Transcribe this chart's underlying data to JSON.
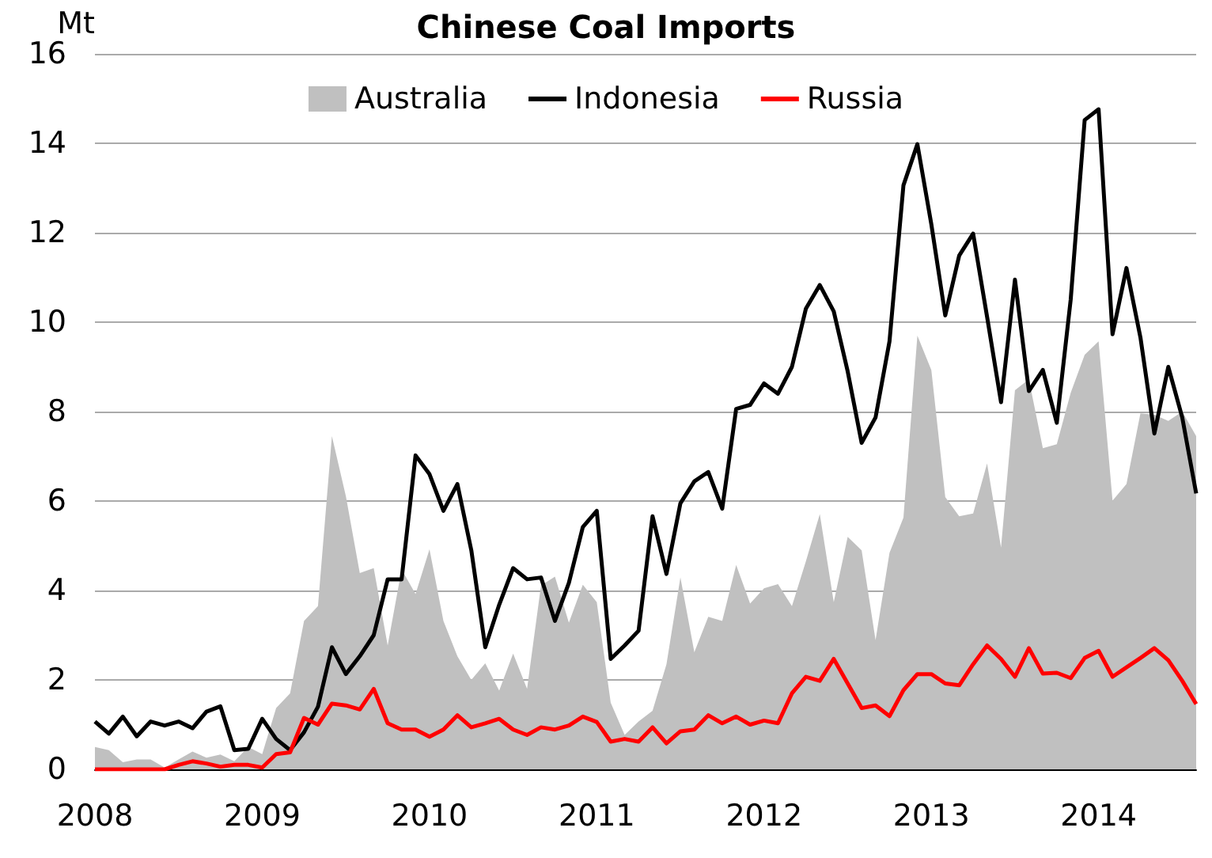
{
  "chart_data": {
    "type": "line",
    "title": "Chinese Coal Imports",
    "ylabel": "Mt",
    "x": [
      "2008-01",
      "2008-02",
      "2008-03",
      "2008-04",
      "2008-05",
      "2008-06",
      "2008-07",
      "2008-08",
      "2008-09",
      "2008-10",
      "2008-11",
      "2008-12",
      "2009-01",
      "2009-02",
      "2009-03",
      "2009-04",
      "2009-05",
      "2009-06",
      "2009-07",
      "2009-08",
      "2009-09",
      "2009-10",
      "2009-11",
      "2009-12",
      "2010-01",
      "2010-02",
      "2010-03",
      "2010-04",
      "2010-05",
      "2010-06",
      "2010-07",
      "2010-08",
      "2010-09",
      "2010-10",
      "2010-11",
      "2010-12",
      "2011-01",
      "2011-02",
      "2011-03",
      "2011-04",
      "2011-05",
      "2011-06",
      "2011-07",
      "2011-08",
      "2011-09",
      "2011-10",
      "2011-11",
      "2011-12",
      "2012-01",
      "2012-02",
      "2012-03",
      "2012-04",
      "2012-05",
      "2012-06",
      "2012-07",
      "2012-08",
      "2012-09",
      "2012-10",
      "2012-11",
      "2012-12",
      "2013-01",
      "2013-02",
      "2013-03",
      "2013-04",
      "2013-05",
      "2013-06",
      "2013-07",
      "2013-08",
      "2013-09",
      "2013-10",
      "2013-11",
      "2013-12",
      "2014-01",
      "2014-02",
      "2014-03",
      "2014-04",
      "2014-05",
      "2014-06",
      "2014-07",
      "2014-08"
    ],
    "series": [
      {
        "name": "Australia",
        "type": "area",
        "color": "#c0c0c0",
        "values": [
          0.5,
          0.43,
          0.16,
          0.22,
          0.22,
          0.04,
          0.22,
          0.4,
          0.26,
          0.33,
          0.18,
          0.5,
          0.34,
          1.37,
          1.7,
          3.32,
          3.65,
          7.45,
          6.11,
          4.39,
          4.5,
          2.77,
          4.47,
          3.92,
          4.92,
          3.32,
          2.53,
          2.0,
          2.37,
          1.76,
          2.59,
          1.8,
          4.11,
          4.31,
          3.28,
          4.13,
          3.74,
          1.49,
          0.77,
          1.07,
          1.31,
          2.35,
          4.29,
          2.62,
          3.41,
          3.32,
          4.57,
          3.71,
          4.05,
          4.14,
          3.65,
          4.65,
          5.71,
          3.74,
          5.2,
          4.9,
          2.89,
          4.84,
          5.63,
          9.7,
          8.93,
          6.09,
          5.66,
          5.72,
          6.84,
          4.96,
          8.48,
          8.72,
          7.18,
          7.27,
          8.42,
          9.27,
          9.57,
          6.01,
          6.38,
          7.96,
          7.93,
          7.79,
          8.0,
          7.45
        ]
      },
      {
        "name": "Indonesia",
        "color": "#000000",
        "values": [
          1.07,
          0.8,
          1.18,
          0.74,
          1.07,
          0.98,
          1.07,
          0.92,
          1.29,
          1.41,
          0.43,
          0.46,
          1.13,
          0.68,
          0.43,
          0.83,
          1.4,
          2.73,
          2.13,
          2.53,
          3.0,
          4.25,
          4.25,
          7.02,
          6.6,
          5.78,
          6.38,
          4.9,
          2.73,
          3.68,
          4.5,
          4.25,
          4.29,
          3.32,
          4.17,
          5.42,
          5.78,
          2.47,
          2.77,
          3.1,
          5.66,
          4.37,
          5.95,
          6.44,
          6.65,
          5.83,
          8.06,
          8.15,
          8.63,
          8.4,
          9.0,
          10.3,
          10.83,
          10.24,
          8.9,
          7.3,
          7.87,
          9.57,
          13.06,
          13.98,
          12.19,
          10.15,
          11.49,
          11.98,
          10.12,
          8.21,
          10.95,
          8.46,
          8.93,
          7.75,
          10.51,
          14.52,
          14.76,
          9.73,
          11.21,
          9.66,
          7.51,
          9.0,
          7.87,
          6.17
        ]
      },
      {
        "name": "Russia",
        "color": "#ff0000",
        "values": [
          0,
          0,
          0,
          0,
          0,
          0,
          0.1,
          0.18,
          0.13,
          0.06,
          0.1,
          0.1,
          0.04,
          0.34,
          0.38,
          1.15,
          1.0,
          1.47,
          1.43,
          1.34,
          1.8,
          1.03,
          0.89,
          0.89,
          0.73,
          0.89,
          1.21,
          0.94,
          1.03,
          1.13,
          0.89,
          0.77,
          0.94,
          0.89,
          0.98,
          1.18,
          1.06,
          0.62,
          0.68,
          0.62,
          0.94,
          0.58,
          0.85,
          0.89,
          1.21,
          1.03,
          1.18,
          1.0,
          1.09,
          1.03,
          1.7,
          2.07,
          1.98,
          2.47,
          1.92,
          1.37,
          1.43,
          1.19,
          1.77,
          2.13,
          2.13,
          1.92,
          1.88,
          2.35,
          2.77,
          2.47,
          2.07,
          2.71,
          2.14,
          2.16,
          2.04,
          2.49,
          2.65,
          2.07,
          2.28,
          2.49,
          2.71,
          2.44,
          1.98,
          1.46
        ]
      }
    ],
    "xlim": [
      "2008-01",
      "2014-08"
    ],
    "xticks": [
      "2008",
      "2009",
      "2010",
      "2011",
      "2012",
      "2013",
      "2014"
    ],
    "ylim": [
      0,
      16
    ],
    "yticks": [
      0,
      2,
      4,
      6,
      8,
      10,
      12,
      14,
      16
    ],
    "grid": "y",
    "legend": "top",
    "marker": "none",
    "line_style": "solid"
  }
}
